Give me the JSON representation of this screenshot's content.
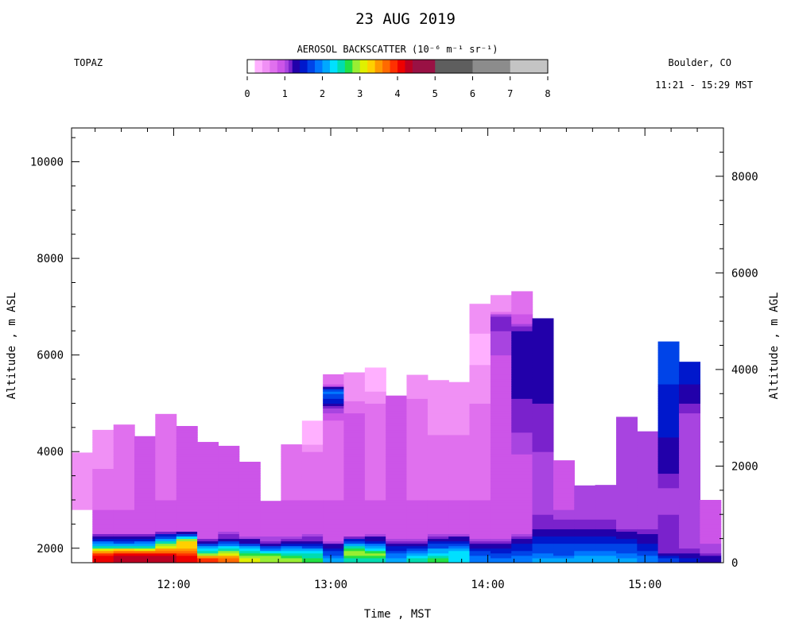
{
  "header": {
    "title": "23 AUG 2019",
    "instrument": "TOPAZ",
    "location": "Boulder, CO",
    "time_span": "11:21 - 15:29 MST"
  },
  "colorbar": {
    "label": "AEROSOL BACKSCATTER (10⁻⁶ m⁻¹ sr⁻¹)",
    "ticks": [
      "0",
      "1",
      "2",
      "3",
      "4",
      "5",
      "6",
      "7",
      "8"
    ],
    "tick_values": [
      0,
      1,
      2,
      3,
      4,
      5,
      6,
      7,
      8
    ],
    "range": [
      0,
      8
    ],
    "colors": [
      "#ffffff",
      "#ffb0ff",
      "#f090f5",
      "#e070ee",
      "#cc55e8",
      "#a844e0",
      "#7a22cc",
      "#2200aa",
      "#0018cc",
      "#0044e8",
      "#0077ff",
      "#00a8ff",
      "#00e0ff",
      "#00dcb0",
      "#22e044",
      "#99ee33",
      "#e0f000",
      "#ffd000",
      "#ff9900",
      "#ff6a00",
      "#ff3000",
      "#ee0000",
      "#bb0022",
      "#991144",
      "#5e5e5e",
      "#8c8c8c",
      "#c4c4c4"
    ],
    "color_edges": [
      0,
      0.2,
      0.4,
      0.6,
      0.8,
      1.0,
      1.1,
      1.2,
      1.4,
      1.6,
      1.8,
      2.0,
      2.2,
      2.4,
      2.6,
      2.8,
      3.0,
      3.2,
      3.4,
      3.6,
      3.8,
      4.0,
      4.2,
      4.4,
      5.0,
      6.0,
      7.0,
      8.0
    ]
  },
  "chart_data": {
    "type": "heatmap",
    "xlabel": "Time , MST",
    "ylabel_left": "Altitude , m ASL",
    "ylabel_right": "Altitude , m AGL",
    "x_ticks": [
      "12:00",
      "13:00",
      "14:00",
      "15:00"
    ],
    "x_tick_hours": [
      12,
      13,
      14,
      15
    ],
    "xlim_hours": [
      11.35,
      15.5
    ],
    "ylim_left": [
      1700,
      10700
    ],
    "y_ticks_left": [
      2000,
      4000,
      6000,
      8000,
      10000
    ],
    "ylim_right": [
      0,
      9000
    ],
    "y_ticks_right": [
      0,
      2000,
      4000,
      6000,
      8000
    ],
    "profile_width_hours": 0.1333,
    "profiles": [
      {
        "t": 11.35,
        "bottom": 2800,
        "top": 3980,
        "layers": [
          [
            1,
            0.5
          ]
        ]
      },
      {
        "t": 11.483,
        "bottom": 1700,
        "top": 4450,
        "layers": [
          [
            1850,
            4.0
          ],
          [
            1950,
            3.4
          ],
          [
            2050,
            2.2
          ],
          [
            2150,
            1.7
          ],
          [
            2250,
            1.2
          ],
          [
            2350,
            0.8
          ],
          [
            2800,
            0.8
          ],
          [
            4100,
            0.5
          ]
        ]
      },
      {
        "t": 11.617,
        "bottom": 1700,
        "top": 4560,
        "layers": [
          [
            1850,
            4.3
          ],
          [
            1950,
            3.6
          ],
          [
            2050,
            2.2
          ],
          [
            2150,
            1.6
          ],
          [
            2250,
            1.2
          ],
          [
            2350,
            0.8
          ],
          [
            2800,
            0.8
          ],
          [
            4200,
            0.6
          ]
        ]
      },
      {
        "t": 11.75,
        "bottom": 1700,
        "top": 4320,
        "layers": [
          [
            1850,
            4.2
          ],
          [
            1950,
            3.5
          ],
          [
            2050,
            2.2
          ],
          [
            2150,
            1.7
          ],
          [
            2250,
            1.2
          ],
          [
            2350,
            0.9
          ],
          [
            2900,
            0.8
          ]
        ]
      },
      {
        "t": 11.883,
        "bottom": 1700,
        "top": 4780,
        "layers": [
          [
            1850,
            4.2
          ],
          [
            1950,
            3.6
          ],
          [
            2050,
            3.0
          ],
          [
            2150,
            2.2
          ],
          [
            2250,
            1.6
          ],
          [
            2350,
            1.0
          ],
          [
            3000,
            0.8
          ],
          [
            4500,
            0.6
          ]
        ]
      },
      {
        "t": 12.017,
        "bottom": 1700,
        "top": 4530,
        "layers": [
          [
            1850,
            4.1
          ],
          [
            1950,
            3.6
          ],
          [
            2050,
            3.3
          ],
          [
            2150,
            3.2
          ],
          [
            2250,
            2.0
          ],
          [
            2350,
            1.0
          ],
          [
            3000,
            0.8
          ]
        ]
      },
      {
        "t": 12.15,
        "bottom": 1700,
        "top": 4200,
        "layers": [
          [
            1800,
            3.8
          ],
          [
            1900,
            2.6
          ],
          [
            2000,
            2.2
          ],
          [
            2100,
            1.5
          ],
          [
            2200,
            1.0
          ],
          [
            2400,
            0.9
          ],
          [
            3000,
            0.8
          ]
        ]
      },
      {
        "t": 12.283,
        "bottom": 1700,
        "top": 4120,
        "layers": [
          [
            1800,
            3.6
          ],
          [
            1900,
            3.0
          ],
          [
            2000,
            2.4
          ],
          [
            2100,
            1.8
          ],
          [
            2200,
            1.2
          ],
          [
            2350,
            1.0
          ],
          [
            3000,
            0.8
          ]
        ]
      },
      {
        "t": 12.417,
        "bottom": 1700,
        "top": 3790,
        "layers": [
          [
            1800,
            3.0
          ],
          [
            1900,
            2.6
          ],
          [
            2000,
            2.2
          ],
          [
            2100,
            1.4
          ],
          [
            2250,
            1.0
          ],
          [
            2600,
            0.9
          ],
          [
            3000,
            0.8
          ]
        ]
      },
      {
        "t": 12.55,
        "bottom": 1700,
        "top": 2980,
        "layers": [
          [
            1800,
            2.9
          ],
          [
            1900,
            2.5
          ],
          [
            2000,
            1.8
          ],
          [
            2100,
            1.2
          ],
          [
            2300,
            0.9
          ],
          [
            2700,
            0.8
          ]
        ]
      },
      {
        "t": 12.683,
        "bottom": 1700,
        "top": 4150,
        "layers": [
          [
            1800,
            2.8
          ],
          [
            1900,
            2.5
          ],
          [
            2000,
            2.0
          ],
          [
            2100,
            1.3
          ],
          [
            2300,
            0.9
          ],
          [
            3000,
            0.8
          ],
          [
            3600,
            0.7
          ]
        ]
      },
      {
        "t": 12.817,
        "bottom": 1700,
        "top": 4640,
        "layers": [
          [
            1800,
            2.6
          ],
          [
            1900,
            2.4
          ],
          [
            2000,
            1.9
          ],
          [
            2150,
            1.2
          ],
          [
            2400,
            0.9
          ],
          [
            3000,
            0.8
          ],
          [
            4000,
            0.6
          ],
          [
            4200,
            0.3
          ]
        ]
      },
      {
        "t": 12.95,
        "bottom": 1700,
        "top": 5600,
        "layers": [
          [
            1800,
            2.0
          ],
          [
            1900,
            1.7
          ],
          [
            2000,
            1.4
          ],
          [
            2200,
            0.9
          ],
          [
            3000,
            0.8
          ],
          [
            4600,
            0.7
          ],
          [
            4950,
            1.2
          ],
          [
            5100,
            1.6
          ],
          [
            5250,
            1.9
          ],
          [
            5400,
            0.7
          ]
        ]
      },
      {
        "t": 13.083,
        "bottom": 1700,
        "top": 5640,
        "layers": [
          [
            1800,
            2.5
          ],
          [
            1900,
            3.0
          ],
          [
            2000,
            2.6
          ],
          [
            2100,
            1.8
          ],
          [
            2250,
            1.0
          ],
          [
            3000,
            0.8
          ],
          [
            4800,
            0.8
          ],
          [
            5200,
            0.5
          ]
        ]
      },
      {
        "t": 13.217,
        "bottom": 1700,
        "top": 5740,
        "layers": [
          [
            1800,
            2.5
          ],
          [
            1900,
            2.9
          ],
          [
            2000,
            2.2
          ],
          [
            2150,
            1.4
          ],
          [
            2300,
            1.0
          ],
          [
            3000,
            0.8
          ],
          [
            5000,
            0.6
          ],
          [
            5400,
            0.3
          ]
        ]
      },
      {
        "t": 13.35,
        "bottom": 1700,
        "top": 5160,
        "layers": [
          [
            1800,
            2.0
          ],
          [
            1900,
            1.8
          ],
          [
            2000,
            1.5
          ],
          [
            2200,
            1.0
          ],
          [
            3000,
            0.8
          ]
        ]
      },
      {
        "t": 13.483,
        "bottom": 1700,
        "top": 5590,
        "layers": [
          [
            1800,
            2.4
          ],
          [
            1900,
            2.0
          ],
          [
            2000,
            1.5
          ],
          [
            2200,
            1.0
          ],
          [
            3000,
            0.8
          ],
          [
            5000,
            0.7
          ],
          [
            5300,
            0.4
          ]
        ]
      },
      {
        "t": 13.617,
        "bottom": 1700,
        "top": 5480,
        "layers": [
          [
            1800,
            2.6
          ],
          [
            1900,
            2.3
          ],
          [
            2000,
            1.9
          ],
          [
            2150,
            1.3
          ],
          [
            2350,
            0.9
          ],
          [
            3000,
            0.8
          ],
          [
            5000,
            0.5
          ]
        ]
      },
      {
        "t": 13.75,
        "bottom": 1700,
        "top": 5440,
        "layers": [
          [
            1800,
            2.2
          ],
          [
            1900,
            2.3
          ],
          [
            2000,
            2.0
          ],
          [
            2100,
            1.6
          ],
          [
            2300,
            1.0
          ],
          [
            3000,
            0.8
          ],
          [
            5000,
            0.5
          ]
        ]
      },
      {
        "t": 13.883,
        "bottom": 1700,
        "top": 7060,
        "layers": [
          [
            1800,
            1.9
          ],
          [
            1900,
            1.7
          ],
          [
            2000,
            1.4
          ],
          [
            2200,
            1.0
          ],
          [
            3000,
            0.8
          ],
          [
            5000,
            0.6
          ],
          [
            6200,
            0.3
          ],
          [
            6700,
            0.5
          ]
        ]
      },
      {
        "t": 14.017,
        "bottom": 1700,
        "top": 7240,
        "layers": [
          [
            1800,
            1.8
          ],
          [
            1900,
            1.6
          ],
          [
            2000,
            1.4
          ],
          [
            2200,
            1.0
          ],
          [
            3000,
            0.8
          ],
          [
            5000,
            0.8
          ],
          [
            6500,
            1.1
          ],
          [
            6800,
            1.2
          ],
          [
            6900,
            0.5
          ]
        ]
      },
      {
        "t": 14.15,
        "bottom": 1700,
        "top": 7320,
        "layers": [
          [
            1800,
            1.9
          ],
          [
            1900,
            1.7
          ],
          [
            2100,
            1.4
          ],
          [
            2300,
            1.0
          ],
          [
            3000,
            0.8
          ],
          [
            4400,
            1.1
          ],
          [
            5800,
            1.3
          ],
          [
            6500,
            1.2
          ],
          [
            7000,
            0.6
          ]
        ]
      },
      {
        "t": 14.283,
        "bottom": 1700,
        "top": 6760,
        "layers": [
          [
            1800,
            2.0
          ],
          [
            1900,
            1.8
          ],
          [
            2100,
            1.6
          ],
          [
            2400,
            1.2
          ],
          [
            3000,
            1.0
          ],
          [
            5000,
            1.2
          ],
          [
            5800,
            1.4
          ],
          [
            6200,
            1.3
          ]
        ]
      },
      {
        "t": 14.417,
        "bottom": 1700,
        "top": 3820,
        "layers": [
          [
            1800,
            2.0
          ],
          [
            1900,
            1.7
          ],
          [
            2100,
            1.6
          ],
          [
            2400,
            1.2
          ],
          [
            3000,
            0.9
          ]
        ]
      },
      {
        "t": 14.55,
        "bottom": 1700,
        "top": 3300,
        "layers": [
          [
            1800,
            2.1
          ],
          [
            1900,
            1.9
          ],
          [
            2100,
            1.6
          ],
          [
            2400,
            1.2
          ],
          [
            2800,
            1.0
          ]
        ]
      },
      {
        "t": 14.683,
        "bottom": 1700,
        "top": 3310,
        "layers": [
          [
            1800,
            2.1
          ],
          [
            1900,
            1.9
          ],
          [
            2100,
            1.6
          ],
          [
            2400,
            1.2
          ],
          [
            2800,
            1.0
          ]
        ]
      },
      {
        "t": 14.817,
        "bottom": 1700,
        "top": 4720,
        "layers": [
          [
            1800,
            2.0
          ],
          [
            1900,
            1.8
          ],
          [
            2100,
            1.6
          ],
          [
            2400,
            1.1
          ],
          [
            3000,
            1.0
          ]
        ]
      },
      {
        "t": 14.95,
        "bottom": 1700,
        "top": 4420,
        "layers": [
          [
            1800,
            1.9
          ],
          [
            1900,
            1.7
          ],
          [
            2100,
            1.4
          ],
          [
            2400,
            1.1
          ],
          [
            3000,
            1.0
          ]
        ]
      },
      {
        "t": 15.083,
        "bottom": 1700,
        "top": 6280,
        "layers": [
          [
            1800,
            1.6
          ],
          [
            1900,
            1.2
          ],
          [
            2100,
            1.1
          ],
          [
            2400,
            1.2
          ],
          [
            3000,
            1.0
          ],
          [
            3800,
            1.3
          ],
          [
            4300,
            1.4
          ],
          [
            5100,
            1.5
          ],
          [
            5700,
            1.7
          ]
        ]
      },
      {
        "t": 15.217,
        "bottom": 1700,
        "top": 5860,
        "layers": [
          [
            1800,
            1.4
          ],
          [
            1900,
            1.2
          ],
          [
            2100,
            1.0
          ],
          [
            3000,
            1.0
          ],
          [
            4800,
            1.1
          ],
          [
            5600,
            1.5
          ]
        ]
      },
      {
        "t": 15.35,
        "bottom": 1700,
        "top": 3000,
        "layers": [
          [
            1800,
            1.3
          ],
          [
            1900,
            1.1
          ],
          [
            2100,
            1.0
          ],
          [
            2500,
            0.9
          ]
        ]
      }
    ]
  }
}
